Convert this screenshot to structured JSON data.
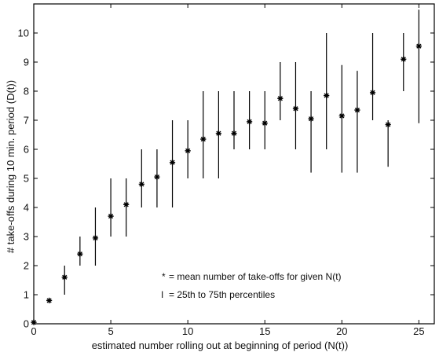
{
  "chart_data": {
    "type": "scatter",
    "title": "",
    "xlabel": "estimated number rolling out at beginning of period (N(t))",
    "ylabel": "# take-offs during 10 min. period (D(t))",
    "xlim": [
      0,
      26
    ],
    "ylim": [
      0,
      11
    ],
    "xticks": [
      0,
      5,
      10,
      15,
      20,
      25
    ],
    "yticks": [
      0,
      1,
      2,
      3,
      4,
      5,
      6,
      7,
      8,
      9,
      10
    ],
    "grid": false,
    "marker_color": "#000000",
    "legend": {
      "placement": "center-right",
      "entries": [
        {
          "symbol": "*",
          "label": "= mean number of take-offs for given N(t)"
        },
        {
          "symbol": "I",
          "label": "= 25th to 75th percentiles"
        }
      ]
    },
    "series": [
      {
        "x": [
          0,
          1,
          2,
          3,
          4,
          5,
          6,
          7,
          8,
          9,
          10,
          11,
          12,
          13,
          14,
          15,
          16,
          17,
          18,
          19,
          20,
          21,
          22,
          23,
          24,
          25
        ],
        "mean": [
          0.05,
          0.8,
          1.6,
          2.4,
          2.95,
          3.7,
          4.1,
          4.8,
          5.05,
          5.55,
          5.95,
          6.35,
          6.55,
          6.55,
          6.95,
          6.9,
          7.75,
          7.4,
          7.05,
          7.85,
          7.15,
          7.35,
          7.95,
          6.85,
          9.1,
          9.55
        ],
        "p25": [
          0,
          0.8,
          1,
          2,
          2,
          3,
          3,
          4,
          4,
          4,
          5,
          5,
          5,
          6,
          6,
          6,
          7,
          6,
          5.2,
          6,
          5.2,
          5.2,
          7,
          5.4,
          8,
          6.9
        ],
        "p75": [
          0.05,
          0.8,
          2,
          3,
          4,
          5,
          5,
          6,
          6,
          7,
          7,
          8,
          8,
          8,
          8,
          8,
          9,
          9,
          8,
          10,
          8.9,
          8.7,
          10,
          7,
          10,
          10.8
        ]
      }
    ]
  }
}
